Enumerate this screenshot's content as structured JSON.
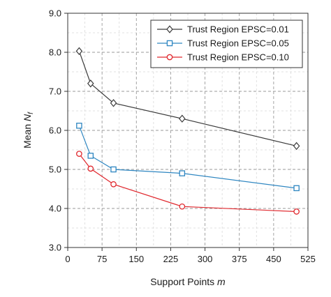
{
  "chart_data": {
    "type": "line",
    "title": "",
    "xlabel": {
      "main": "Support Points ",
      "italic": "m"
    },
    "ylabel": {
      "main": "Mean ",
      "italic": "N",
      "sub": "f"
    },
    "xlim": [
      0,
      525
    ],
    "ylim": [
      3.0,
      9.0
    ],
    "xticks": [
      0,
      75,
      150,
      225,
      300,
      375,
      450,
      525
    ],
    "xtick_labels": [
      "0",
      "75",
      "150",
      "225",
      "300",
      "375",
      "450",
      "525"
    ],
    "yticks": [
      3.0,
      4.0,
      5.0,
      6.0,
      7.0,
      8.0,
      9.0
    ],
    "ytick_labels": [
      "3.0",
      "4.0",
      "5.0",
      "6.0",
      "7.0",
      "8.0",
      "9.0"
    ],
    "grid": {
      "major": true,
      "minor": true,
      "style": "dashed"
    },
    "legend_position": "top-right",
    "x": [
      25,
      50,
      100,
      250,
      500
    ],
    "series": [
      {
        "name": "Trust Region EPSC=0.01",
        "color": "#3a3a3a",
        "marker": "diamond",
        "values": [
          8.03,
          7.2,
          6.7,
          6.3,
          5.6
        ]
      },
      {
        "name": "Trust Region EPSC=0.05",
        "color": "#2e86c1",
        "marker": "square",
        "values": [
          6.12,
          5.35,
          5.0,
          4.9,
          4.52
        ]
      },
      {
        "name": "Trust Region EPSC=0.10",
        "color": "#e0282e",
        "marker": "circle",
        "values": [
          5.4,
          5.02,
          4.62,
          4.05,
          3.92
        ]
      }
    ]
  }
}
